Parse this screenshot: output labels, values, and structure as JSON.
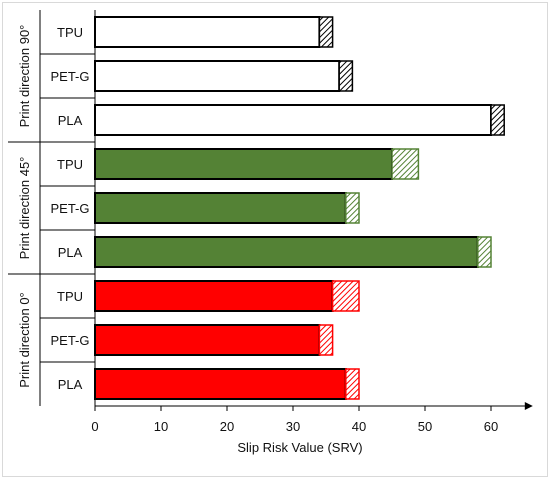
{
  "chart_data": {
    "type": "bar",
    "orientation": "horizontal",
    "xlabel": "Slip Risk Value (SRV)",
    "xlim": [
      0,
      63
    ],
    "xticks": [
      0,
      10,
      20,
      30,
      40,
      50,
      60
    ],
    "grid": false,
    "groups": [
      {
        "label": "Print direction 90°",
        "color": "#ffffff",
        "hatch_color": "#000000",
        "bars": [
          {
            "category": "TPU",
            "value": 34,
            "error": 2
          },
          {
            "category": "PET-G",
            "value": 37,
            "error": 2
          },
          {
            "category": "PLA",
            "value": 60,
            "error": 2
          }
        ]
      },
      {
        "label": "Print direction 45°",
        "color": "#548235",
        "hatch_color": "#548235",
        "bars": [
          {
            "category": "TPU",
            "value": 45,
            "error": 4
          },
          {
            "category": "PET-G",
            "value": 38,
            "error": 2
          },
          {
            "category": "PLA",
            "value": 58,
            "error": 2
          }
        ]
      },
      {
        "label": "Print direction 0°",
        "color": "#ff0000",
        "hatch_color": "#ff0000",
        "bars": [
          {
            "category": "TPU",
            "value": 36,
            "error": 4
          },
          {
            "category": "PET-G",
            "value": 34,
            "error": 2
          },
          {
            "category": "PLA",
            "value": 38,
            "error": 2
          }
        ]
      }
    ]
  }
}
